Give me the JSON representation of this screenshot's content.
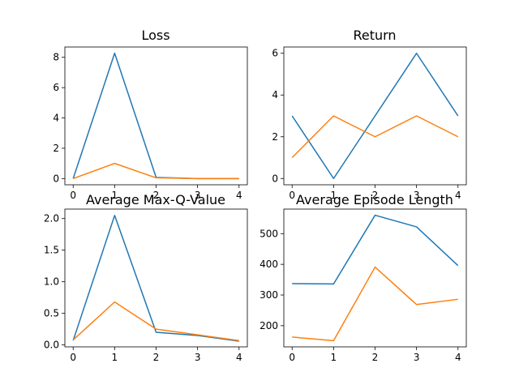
{
  "chart_data": [
    {
      "type": "line",
      "title": "Loss",
      "x": [
        0,
        1,
        2,
        3,
        4
      ],
      "xticks": [
        "0",
        "1",
        "2",
        "3",
        "4"
      ],
      "xlim": [
        -0.2,
        4.2
      ],
      "ylim": [
        -0.41,
        8.68
      ],
      "yticks": [
        0,
        2,
        4,
        6,
        8
      ],
      "ytick_labels": [
        "0",
        "2",
        "4",
        "6",
        "8"
      ],
      "grid": false,
      "series": [
        {
          "color": "#1f77b4",
          "values": [
            0.0,
            8.27,
            0.08,
            0.0,
            0.0
          ]
        },
        {
          "color": "#ff7f0e",
          "values": [
            0.0,
            1.0,
            0.05,
            0.0,
            0.0
          ]
        }
      ]
    },
    {
      "type": "line",
      "title": "Return",
      "x": [
        0,
        1,
        2,
        3,
        4
      ],
      "xticks": [
        "0",
        "1",
        "2",
        "3",
        "4"
      ],
      "xlim": [
        -0.2,
        4.2
      ],
      "ylim": [
        -0.3,
        6.3
      ],
      "yticks": [
        0,
        2,
        4,
        6
      ],
      "ytick_labels": [
        "0",
        "2",
        "4",
        "6"
      ],
      "grid": false,
      "series": [
        {
          "color": "#1f77b4",
          "values": [
            3,
            0,
            3,
            6,
            3
          ]
        },
        {
          "color": "#ff7f0e",
          "values": [
            1,
            3,
            2,
            3,
            2
          ]
        }
      ]
    },
    {
      "type": "line",
      "title": "Average Max-Q-Value",
      "x": [
        0,
        1,
        2,
        3,
        4
      ],
      "xticks": [
        "0",
        "1",
        "2",
        "3",
        "4"
      ],
      "xlim": [
        -0.2,
        4.2
      ],
      "ylim": [
        -0.03,
        2.15
      ],
      "yticks": [
        0.0,
        0.5,
        1.0,
        1.5,
        2.0
      ],
      "ytick_labels": [
        "0.0",
        "0.5",
        "1.0",
        "1.5",
        "2.0"
      ],
      "grid": false,
      "series": [
        {
          "color": "#1f77b4",
          "values": [
            0.07,
            2.05,
            0.2,
            0.15,
            0.06
          ]
        },
        {
          "color": "#ff7f0e",
          "values": [
            0.08,
            0.68,
            0.25,
            0.16,
            0.07
          ]
        }
      ]
    },
    {
      "type": "line",
      "title": "Average Episode Length",
      "x": [
        0,
        1,
        2,
        3,
        4
      ],
      "xticks": [
        "0",
        "1",
        "2",
        "3",
        "4"
      ],
      "xlim": [
        -0.2,
        4.2
      ],
      "ylim": [
        131,
        580
      ],
      "yticks": [
        200,
        300,
        400,
        500
      ],
      "ytick_labels": [
        "200",
        "300",
        "400",
        "500"
      ],
      "grid": false,
      "series": [
        {
          "color": "#1f77b4",
          "values": [
            337,
            336,
            560,
            522,
            396
          ]
        },
        {
          "color": "#ff7f0e",
          "values": [
            163,
            151,
            391,
            269,
            286
          ]
        }
      ]
    }
  ]
}
